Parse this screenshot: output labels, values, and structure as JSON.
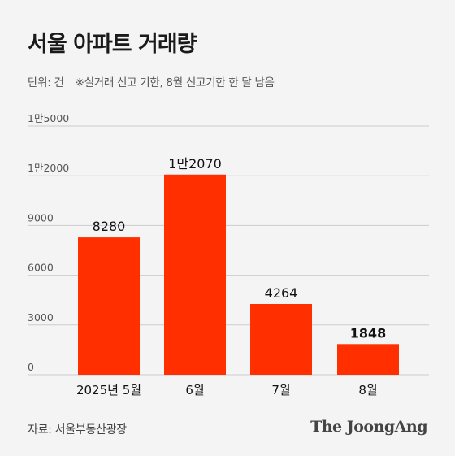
{
  "header": {
    "title": "서울 아파트 거래량",
    "unit": "단위: 건",
    "note": "※실거래 신고 기한, 8월 신고기한 한 달 남음"
  },
  "footer": {
    "source": "자료: 서울부동산광장",
    "brand": "The JoongAng"
  },
  "colors": {
    "bar": "#ff2f00",
    "grid": "#cccccc",
    "axis_text": "#555555",
    "label_text": "#111111"
  },
  "chart_data": {
    "type": "bar",
    "title": "서울 아파트 거래량",
    "unit": "단위: 건",
    "categories": [
      "2025년 5월",
      "6월",
      "7월",
      "8월"
    ],
    "values": [
      8280,
      12070,
      4264,
      1848
    ],
    "value_labels": [
      "8280",
      "1만2070",
      "4264",
      "1848"
    ],
    "ylim": [
      0,
      15000
    ],
    "yticks": [
      0,
      3000,
      6000,
      9000,
      12000,
      15000
    ],
    "ytick_labels": [
      "0",
      "3000",
      "6000",
      "9000",
      "1만2000",
      "1만5000"
    ],
    "grid": true,
    "legend": "none"
  }
}
